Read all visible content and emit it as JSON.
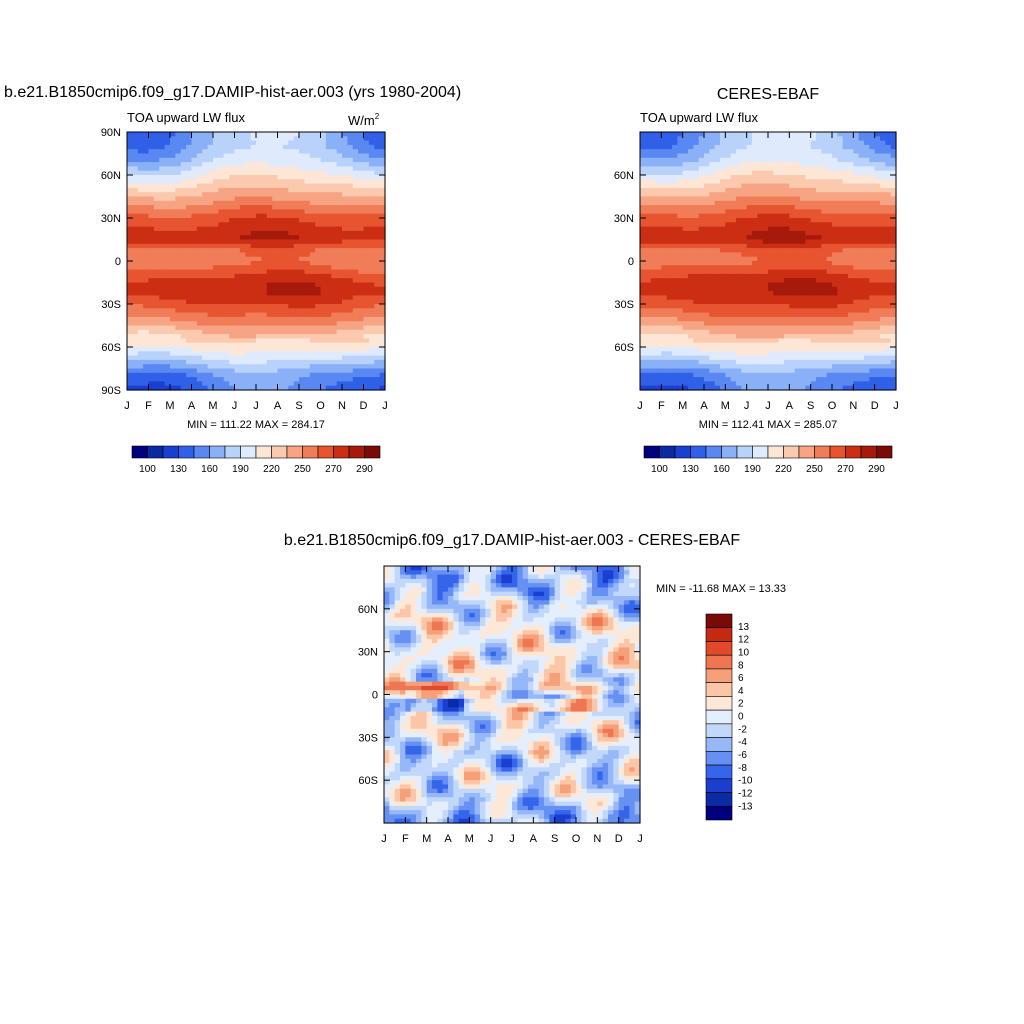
{
  "chart_data": [
    {
      "type": "heatmap",
      "title": "b.e21.B1850cmip6.f09_g17.DAMIP-hist-aer.003 (yrs 1980-2004)",
      "subtitle": "TOA upward LW flux",
      "units": "W/m",
      "units_sup": "2",
      "x_ticks": [
        "J",
        "F",
        "M",
        "A",
        "M",
        "J",
        "J",
        "A",
        "S",
        "O",
        "N",
        "D",
        "J"
      ],
      "y_ticks": [
        "90N",
        "60N",
        "30N",
        "0",
        "30S",
        "60S",
        "90S"
      ],
      "ylim": [
        -90,
        90
      ],
      "stats": "MIN = 111.22 MAX = 284.17",
      "colorbar": {
        "orientation": "horizontal",
        "labels": [
          "100",
          "130",
          "160",
          "190",
          "220",
          "250",
          "270",
          "290"
        ]
      },
      "lat_profile": [
        {
          "lat": 90,
          "v": 160
        },
        {
          "lat": 80,
          "v": 162
        },
        {
          "lat": 70,
          "v": 175
        },
        {
          "lat": 60,
          "v": 195
        },
        {
          "lat": 50,
          "v": 215
        },
        {
          "lat": 40,
          "v": 235
        },
        {
          "lat": 30,
          "v": 255
        },
        {
          "lat": 22,
          "v": 265
        },
        {
          "lat": 15,
          "v": 270
        },
        {
          "lat": 8,
          "v": 245
        },
        {
          "lat": 0,
          "v": 240
        },
        {
          "lat": -8,
          "v": 255
        },
        {
          "lat": -15,
          "v": 268
        },
        {
          "lat": -22,
          "v": 270
        },
        {
          "lat": -30,
          "v": 258
        },
        {
          "lat": -40,
          "v": 240
        },
        {
          "lat": -50,
          "v": 218
        },
        {
          "lat": -60,
          "v": 200
        },
        {
          "lat": -70,
          "v": 175
        },
        {
          "lat": -80,
          "v": 150
        },
        {
          "lat": -90,
          "v": 140
        }
      ]
    },
    {
      "type": "heatmap",
      "title": "CERES-EBAF",
      "subtitle": "TOA upward LW flux",
      "x_ticks": [
        "J",
        "F",
        "M",
        "A",
        "M",
        "J",
        "J",
        "A",
        "S",
        "O",
        "N",
        "D",
        "J"
      ],
      "y_ticks": [
        "60N",
        "30N",
        "0",
        "30S",
        "60S"
      ],
      "ylim": [
        -90,
        90
      ],
      "stats": "MIN = 112.41 MAX = 285.07",
      "colorbar": {
        "orientation": "horizontal",
        "labels": [
          "100",
          "130",
          "160",
          "190",
          "220",
          "250",
          "270",
          "290"
        ]
      },
      "lat_profile": [
        {
          "lat": 90,
          "v": 162
        },
        {
          "lat": 80,
          "v": 165
        },
        {
          "lat": 70,
          "v": 178
        },
        {
          "lat": 60,
          "v": 198
        },
        {
          "lat": 50,
          "v": 218
        },
        {
          "lat": 40,
          "v": 237
        },
        {
          "lat": 30,
          "v": 256
        },
        {
          "lat": 22,
          "v": 266
        },
        {
          "lat": 15,
          "v": 272
        },
        {
          "lat": 8,
          "v": 250
        },
        {
          "lat": 0,
          "v": 243
        },
        {
          "lat": -8,
          "v": 257
        },
        {
          "lat": -15,
          "v": 270
        },
        {
          "lat": -22,
          "v": 271
        },
        {
          "lat": -30,
          "v": 259
        },
        {
          "lat": -40,
          "v": 241
        },
        {
          "lat": -50,
          "v": 219
        },
        {
          "lat": -60,
          "v": 201
        },
        {
          "lat": -70,
          "v": 176
        },
        {
          "lat": -80,
          "v": 151
        },
        {
          "lat": -90,
          "v": 142
        }
      ]
    },
    {
      "type": "heatmap",
      "title": "b.e21.B1850cmip6.f09_g17.DAMIP-hist-aer.003 - CERES-EBAF",
      "x_ticks": [
        "J",
        "F",
        "M",
        "A",
        "M",
        "J",
        "J",
        "A",
        "S",
        "O",
        "N",
        "D",
        "J"
      ],
      "y_ticks": [
        "60N",
        "30N",
        "0",
        "30S",
        "60S"
      ],
      "ylim": [
        -90,
        90
      ],
      "stats": "MIN = -11.68 MAX =  13.33",
      "colorbar": {
        "orientation": "vertical",
        "labels": [
          "13",
          "12",
          "10",
          "8",
          "6",
          "4",
          "2",
          "0",
          "-2",
          "-4",
          "-6",
          "-8",
          "-10",
          "-12",
          "-13"
        ]
      },
      "lat_profile": [
        {
          "lat": 90,
          "v": -3
        },
        {
          "lat": 80,
          "v": -4
        },
        {
          "lat": 70,
          "v": -2.5
        },
        {
          "lat": 60,
          "v": -1
        },
        {
          "lat": 50,
          "v": 0.8
        },
        {
          "lat": 40,
          "v": 0.5
        },
        {
          "lat": 30,
          "v": 0.3
        },
        {
          "lat": 20,
          "v": 0.6
        },
        {
          "lat": 10,
          "v": -0.5
        },
        {
          "lat": 5,
          "v": 2
        },
        {
          "lat": 0,
          "v": -1.5
        },
        {
          "lat": -5,
          "v": -3
        },
        {
          "lat": -10,
          "v": -1
        },
        {
          "lat": -20,
          "v": -0.5
        },
        {
          "lat": -30,
          "v": 0.2
        },
        {
          "lat": -40,
          "v": -1.5
        },
        {
          "lat": -50,
          "v": -2
        },
        {
          "lat": -60,
          "v": -0.5
        },
        {
          "lat": -70,
          "v": -1
        },
        {
          "lat": -80,
          "v": -3
        },
        {
          "lat": -90,
          "v": -4
        }
      ]
    }
  ],
  "colors": {
    "main_scale": [
      "#00007f",
      "#0a2a9f",
      "#1a3fd0",
      "#3060e8",
      "#5a88f2",
      "#8ab0f7",
      "#b8d2fb",
      "#dfeafc",
      "#fde6d6",
      "#fbc9ad",
      "#f6a483",
      "#f07c58",
      "#e65430",
      "#cc2e14",
      "#a51a0a",
      "#7a0a05"
    ],
    "diff_scale": [
      "#00007f",
      "#0a2aa8",
      "#1a3fd0",
      "#3565ea",
      "#6790f3",
      "#97b8f8",
      "#c2d8fb",
      "#e4eefc",
      "#fde8d8",
      "#fbc6a8",
      "#f6a07a",
      "#ef7650",
      "#e2492a",
      "#c42a12",
      "#7a0a05"
    ]
  }
}
